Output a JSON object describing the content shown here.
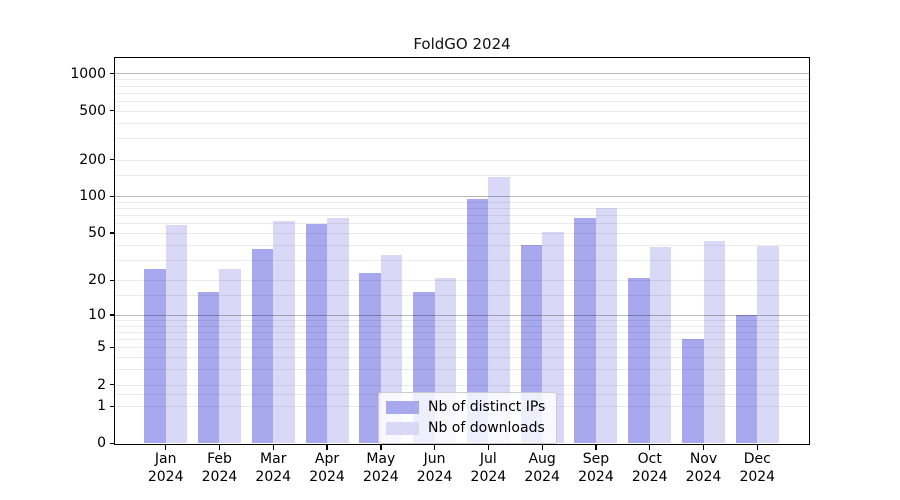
{
  "chart_data": {
    "type": "bar",
    "title": "FoldGO 2024",
    "categories": [
      "Jan",
      "Feb",
      "Mar",
      "Apr",
      "May",
      "Jun",
      "Jul",
      "Aug",
      "Sep",
      "Oct",
      "Nov",
      "Dec"
    ],
    "category_year": "2024",
    "series": [
      {
        "name": "Nb of distinct IPs",
        "color": "#a8a8ef",
        "values": [
          25,
          16,
          37,
          59,
          23,
          16,
          95,
          40,
          67,
          21,
          6,
          10
        ]
      },
      {
        "name": "Nb of downloads",
        "color": "#d9d9f7",
        "values": [
          58,
          25,
          63,
          67,
          33,
          21,
          145,
          51,
          80,
          38,
          43,
          39
        ]
      }
    ],
    "yscale": "log10(value+1)",
    "ylim": [
      0,
      1340
    ],
    "yticks": [
      0,
      1,
      2,
      5,
      10,
      20,
      50,
      100,
      200,
      500,
      1000
    ],
    "major_gridlines": [
      10,
      100,
      1000
    ],
    "minor_gridlines": [
      1,
      1.5,
      2,
      3,
      4,
      5,
      6,
      7,
      8,
      9,
      15,
      20,
      30,
      40,
      50,
      60,
      70,
      80,
      90,
      150,
      200,
      300,
      400,
      500,
      600,
      700,
      800,
      900
    ],
    "grid": "on",
    "legend_position": "lower-center"
  }
}
